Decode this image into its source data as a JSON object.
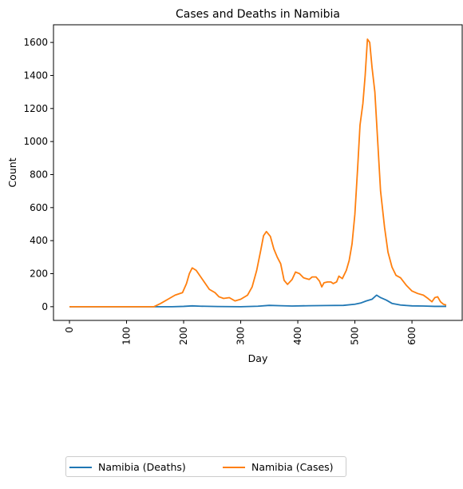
{
  "chart_data": {
    "type": "line",
    "title": "Cases and Deaths in Namibia",
    "xlabel": "Day",
    "ylabel": "Count",
    "xlim": [
      -28,
      688
    ],
    "ylim": [
      -83,
      1707
    ],
    "x_ticks": [
      0,
      100,
      200,
      300,
      400,
      500,
      600
    ],
    "x_tick_labels": [
      "0",
      "100",
      "200",
      "300",
      "400",
      "500",
      "600"
    ],
    "y_ticks": [
      0,
      200,
      400,
      600,
      800,
      1000,
      1200,
      1400,
      1600
    ],
    "y_tick_labels": [
      "0",
      "200",
      "400",
      "600",
      "800",
      "1000",
      "1200",
      "1400",
      "1600"
    ],
    "grid": false,
    "legend_position": "below chart, bottom-left",
    "series": [
      {
        "name": "Namibia (Deaths)",
        "color": "#1f77b4",
        "points": [
          [
            0,
            0
          ],
          [
            100,
            0
          ],
          [
            150,
            0
          ],
          [
            180,
            0
          ],
          [
            200,
            2
          ],
          [
            215,
            5
          ],
          [
            230,
            3
          ],
          [
            260,
            1
          ],
          [
            300,
            0
          ],
          [
            330,
            3
          ],
          [
            350,
            8
          ],
          [
            370,
            6
          ],
          [
            390,
            4
          ],
          [
            420,
            6
          ],
          [
            450,
            7
          ],
          [
            480,
            8
          ],
          [
            500,
            15
          ],
          [
            510,
            22
          ],
          [
            520,
            35
          ],
          [
            530,
            45
          ],
          [
            538,
            70
          ],
          [
            545,
            55
          ],
          [
            555,
            40
          ],
          [
            565,
            20
          ],
          [
            580,
            10
          ],
          [
            600,
            5
          ],
          [
            620,
            4
          ],
          [
            640,
            2
          ],
          [
            660,
            2
          ]
        ]
      },
      {
        "name": "Namibia (Cases)",
        "color": "#ff7f0e",
        "points": [
          [
            0,
            0
          ],
          [
            100,
            0
          ],
          [
            148,
            0
          ],
          [
            160,
            20
          ],
          [
            175,
            50
          ],
          [
            185,
            70
          ],
          [
            198,
            85
          ],
          [
            205,
            140
          ],
          [
            210,
            200
          ],
          [
            215,
            235
          ],
          [
            222,
            220
          ],
          [
            230,
            180
          ],
          [
            238,
            140
          ],
          [
            245,
            105
          ],
          [
            255,
            85
          ],
          [
            262,
            60
          ],
          [
            270,
            50
          ],
          [
            280,
            55
          ],
          [
            290,
            35
          ],
          [
            300,
            45
          ],
          [
            312,
            70
          ],
          [
            320,
            120
          ],
          [
            328,
            220
          ],
          [
            335,
            340
          ],
          [
            340,
            430
          ],
          [
            345,
            455
          ],
          [
            352,
            425
          ],
          [
            358,
            350
          ],
          [
            364,
            300
          ],
          [
            370,
            260
          ],
          [
            376,
            160
          ],
          [
            382,
            135
          ],
          [
            390,
            165
          ],
          [
            396,
            210
          ],
          [
            403,
            200
          ],
          [
            410,
            175
          ],
          [
            420,
            165
          ],
          [
            425,
            180
          ],
          [
            432,
            180
          ],
          [
            438,
            155
          ],
          [
            442,
            120
          ],
          [
            446,
            145
          ],
          [
            452,
            150
          ],
          [
            458,
            150
          ],
          [
            462,
            140
          ],
          [
            468,
            150
          ],
          [
            472,
            185
          ],
          [
            478,
            170
          ],
          [
            485,
            220
          ],
          [
            490,
            280
          ],
          [
            495,
            380
          ],
          [
            500,
            560
          ],
          [
            505,
            850
          ],
          [
            509,
            1100
          ],
          [
            514,
            1230
          ],
          [
            518,
            1400
          ],
          [
            522,
            1620
          ],
          [
            526,
            1600
          ],
          [
            530,
            1450
          ],
          [
            535,
            1300
          ],
          [
            540,
            1000
          ],
          [
            545,
            700
          ],
          [
            552,
            480
          ],
          [
            558,
            330
          ],
          [
            565,
            240
          ],
          [
            572,
            190
          ],
          [
            580,
            175
          ],
          [
            590,
            130
          ],
          [
            600,
            95
          ],
          [
            610,
            80
          ],
          [
            620,
            70
          ],
          [
            628,
            50
          ],
          [
            635,
            30
          ],
          [
            640,
            55
          ],
          [
            645,
            60
          ],
          [
            650,
            30
          ],
          [
            655,
            15
          ],
          [
            660,
            10
          ]
        ]
      }
    ]
  }
}
